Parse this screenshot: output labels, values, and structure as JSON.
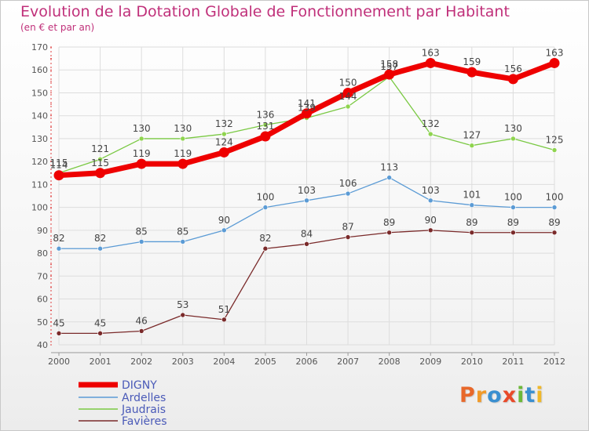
{
  "header": {
    "title": "Evolution de la Dotation Globale de Fonctionnement par Habitant",
    "subtitle": "(en € et par an)"
  },
  "logo": {
    "text": "Proxiti",
    "letters": [
      {
        "ch": "P",
        "color": "#e8682a"
      },
      {
        "ch": "r",
        "color": "#f09a2a"
      },
      {
        "ch": "o",
        "color": "#3a8fd0"
      },
      {
        "ch": "x",
        "color": "#e84a2a"
      },
      {
        "ch": "i",
        "color": "#6cb83a"
      },
      {
        "ch": "t",
        "color": "#3a8fd0"
      },
      {
        "ch": "i",
        "color": "#f0b82a"
      }
    ]
  },
  "chart_data": {
    "type": "line",
    "x": [
      2000,
      2001,
      2002,
      2003,
      2004,
      2005,
      2006,
      2007,
      2008,
      2009,
      2010,
      2011,
      2012
    ],
    "ylim": [
      40,
      170
    ],
    "yticks": [
      40,
      50,
      60,
      70,
      80,
      90,
      100,
      110,
      120,
      130,
      140,
      150,
      160,
      170
    ],
    "grid": true,
    "legend_position": "bottom-left",
    "series": [
      {
        "name": "DIGNY",
        "color": "#ee0000",
        "values": [
          114,
          115,
          119,
          119,
          124,
          131,
          141,
          150,
          158,
          163,
          159,
          156,
          163
        ]
      },
      {
        "name": "Ardelles",
        "color": "#5b9bd5",
        "values": [
          82,
          82,
          85,
          85,
          90,
          100,
          103,
          106,
          113,
          103,
          101,
          100,
          100
        ]
      },
      {
        "name": "Jaudrais",
        "color": "#7ac943",
        "values": [
          115,
          121,
          130,
          130,
          132,
          136,
          139,
          144,
          157,
          132,
          127,
          130,
          125
        ]
      },
      {
        "name": "Favières",
        "color": "#7a2a2a",
        "values": [
          45,
          45,
          46,
          53,
          51,
          82,
          84,
          87,
          89,
          90,
          89,
          89,
          89
        ]
      }
    ]
  }
}
